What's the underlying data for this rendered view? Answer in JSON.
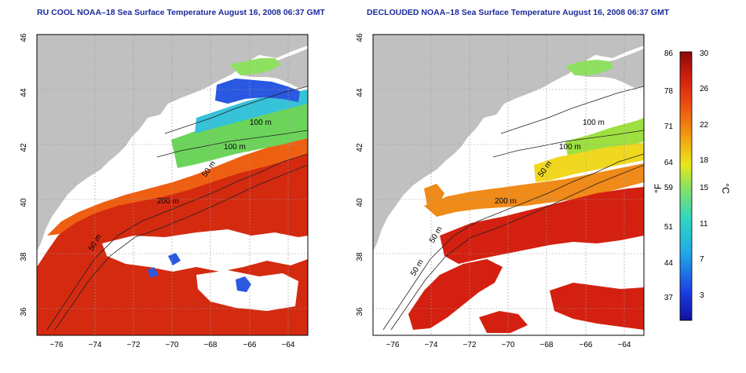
{
  "titles": {
    "left": "RU COOL NOAA–18 Sea Surface Temperature August 16, 2008 06:37 GMT",
    "right": "DECLOUDED NOAA–18 Sea Surface Temperature August 16, 2008 06:37 GMT"
  },
  "axes": {
    "x_ticks": [
      "−76",
      "−74",
      "−72",
      "−70",
      "−68",
      "−66",
      "−64"
    ],
    "y_ticks": [
      "46",
      "44",
      "42",
      "40",
      "38",
      "36"
    ],
    "x_range": [
      -77,
      -63
    ],
    "y_range": [
      35,
      46
    ]
  },
  "contours": {
    "left": [
      "100 m",
      "100 m",
      "50 m",
      "200 m",
      "50 m"
    ],
    "right": [
      "100 m",
      "100 m",
      "50 m",
      "200 m",
      "50 m",
      "50 m"
    ]
  },
  "colorbar": {
    "unit_f": "°F",
    "unit_c": "°C",
    "f_ticks": [
      "86",
      "78",
      "71",
      "64",
      "59",
      "51",
      "44",
      "37"
    ],
    "c_ticks": [
      "30",
      "26",
      "22",
      "18",
      "15",
      "11",
      "7",
      "3"
    ],
    "range_c": [
      0,
      30
    ]
  },
  "colors": {
    "land": "#c0c0c0",
    "cloud": "#ffffff",
    "warm": "#d42a10",
    "cool": "#1c3cd8"
  }
}
